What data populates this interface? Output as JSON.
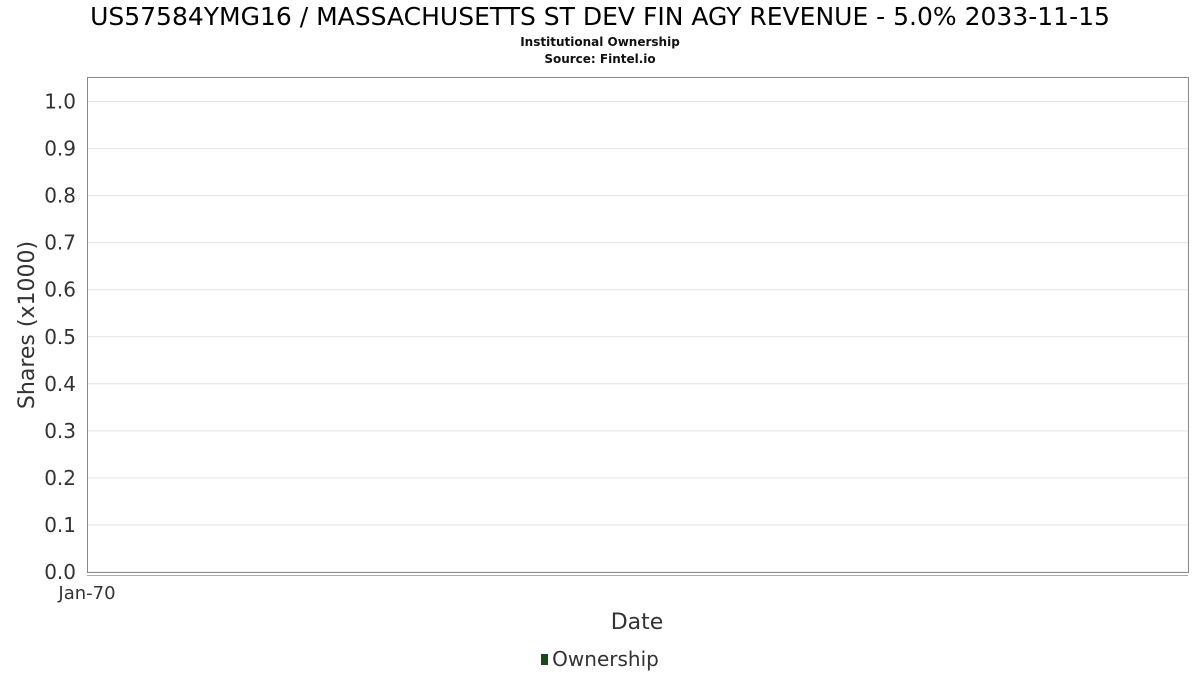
{
  "title": "US57584YMG16 / MASSACHUSETTS ST DEV FIN AGY REVENUE - 5.0% 2033-11-15",
  "subtitle": "Institutional Ownership",
  "source": "Source: Fintel.io",
  "chart_data": {
    "type": "bar",
    "xlabel": "Date",
    "ylabel": "Shares (x1000)",
    "x_ticks": [
      "Jan-70"
    ],
    "y_ticks": [
      "0.0",
      "0.1",
      "0.2",
      "0.3",
      "0.4",
      "0.5",
      "0.6",
      "0.7",
      "0.8",
      "0.9",
      "1.0"
    ],
    "ylim": [
      0,
      1.05
    ],
    "grid": true,
    "legend_placement": "bottom",
    "series": [
      {
        "name": "Ownership",
        "color": "#1a4a1a",
        "x": [],
        "values": []
      }
    ]
  }
}
